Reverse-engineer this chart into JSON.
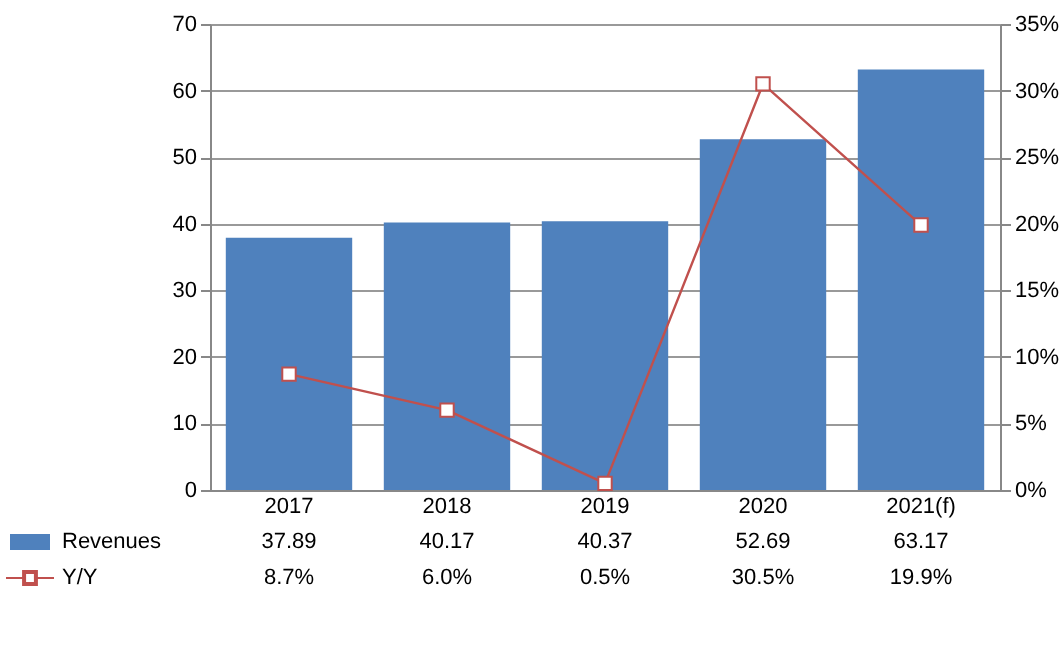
{
  "chart_data": {
    "type": "bar",
    "categories": [
      "2017",
      "2018",
      "2019",
      "2020",
      "2021(f)"
    ],
    "series": [
      {
        "name": "Revenues",
        "color": "#4f81bd",
        "values": [
          37.89,
          40.17,
          40.37,
          52.69,
          63.17
        ],
        "value_labels": [
          "37.89",
          "40.17",
          "40.37",
          "52.69",
          "63.17"
        ]
      },
      {
        "name": "Y/Y",
        "type": "line",
        "axis": "y2",
        "color": "#c0504d",
        "marker": "square",
        "values": [
          8.7,
          6.0,
          0.5,
          30.5,
          19.9
        ],
        "value_labels": [
          "8.7%",
          "6.0%",
          "0.5%",
          "30.5%",
          "19.9%"
        ]
      }
    ],
    "ylim": [
      0,
      70
    ],
    "yticks": [
      0,
      10,
      20,
      30,
      40,
      50,
      60,
      70
    ],
    "y2lim": [
      0,
      35
    ],
    "y2ticks": [
      {
        "value": 0,
        "label": "0%"
      },
      {
        "value": 5,
        "label": "5%"
      },
      {
        "value": 10,
        "label": "10%"
      },
      {
        "value": 15,
        "label": "15%"
      },
      {
        "value": 20,
        "label": "20%"
      },
      {
        "value": 25,
        "label": "25%"
      },
      {
        "value": 30,
        "label": "30%"
      },
      {
        "value": 35,
        "label": "35%"
      }
    ],
    "grid": "y",
    "legend": "bottom"
  }
}
